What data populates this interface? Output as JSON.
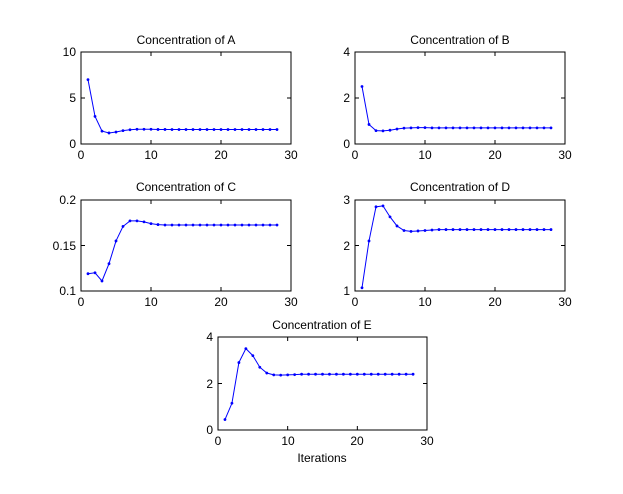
{
  "chart_data": [
    {
      "type": "line",
      "title": "Concentration of A",
      "xlabel": "",
      "ylabel": "",
      "xlim": [
        0,
        30
      ],
      "ylim": [
        0,
        10
      ],
      "xticks": [
        0,
        10,
        20,
        30
      ],
      "yticks": [
        0,
        5,
        10
      ],
      "xtick_labels": [
        "0",
        "10",
        "20",
        "30"
      ],
      "ytick_labels": [
        "0",
        "5",
        "10"
      ],
      "grid": false,
      "series": [
        {
          "color": "#0000ff",
          "marker": "dot",
          "x": [
            1,
            2,
            3,
            4,
            5,
            6,
            7,
            8,
            9,
            10,
            11,
            12,
            13,
            14,
            15,
            16,
            17,
            18,
            19,
            20,
            21,
            22,
            23,
            24,
            25,
            26,
            27,
            28
          ],
          "y": [
            7.0,
            3.0,
            1.4,
            1.2,
            1.3,
            1.45,
            1.55,
            1.6,
            1.6,
            1.6,
            1.58,
            1.58,
            1.57,
            1.57,
            1.57,
            1.57,
            1.57,
            1.57,
            1.57,
            1.57,
            1.57,
            1.57,
            1.57,
            1.57,
            1.57,
            1.57,
            1.57,
            1.57
          ]
        }
      ]
    },
    {
      "type": "line",
      "title": "Concentration of B",
      "xlabel": "",
      "ylabel": "",
      "xlim": [
        0,
        30
      ],
      "ylim": [
        0,
        4
      ],
      "xticks": [
        0,
        10,
        20,
        30
      ],
      "yticks": [
        0,
        2,
        4
      ],
      "xtick_labels": [
        "0",
        "10",
        "20",
        "30"
      ],
      "ytick_labels": [
        "0",
        "2",
        "4"
      ],
      "grid": false,
      "series": [
        {
          "color": "#0000ff",
          "marker": "dot",
          "x": [
            1,
            2,
            3,
            4,
            5,
            6,
            7,
            8,
            9,
            10,
            11,
            12,
            13,
            14,
            15,
            16,
            17,
            18,
            19,
            20,
            21,
            22,
            23,
            24,
            25,
            26,
            27,
            28
          ],
          "y": [
            2.5,
            0.85,
            0.58,
            0.57,
            0.6,
            0.65,
            0.69,
            0.7,
            0.71,
            0.71,
            0.7,
            0.7,
            0.7,
            0.7,
            0.7,
            0.7,
            0.7,
            0.7,
            0.7,
            0.7,
            0.7,
            0.7,
            0.7,
            0.7,
            0.7,
            0.7,
            0.7,
            0.7
          ]
        }
      ]
    },
    {
      "type": "line",
      "title": "Concentration of C",
      "xlabel": "",
      "ylabel": "",
      "xlim": [
        0,
        30
      ],
      "ylim": [
        0.1,
        0.2
      ],
      "xticks": [
        0,
        10,
        20,
        30
      ],
      "yticks": [
        0.1,
        0.15,
        0.2
      ],
      "xtick_labels": [
        "0",
        "10",
        "20",
        "30"
      ],
      "ytick_labels": [
        "0.1",
        "0.15",
        "0.2"
      ],
      "grid": false,
      "series": [
        {
          "color": "#0000ff",
          "marker": "dot",
          "x": [
            1,
            2,
            3,
            4,
            5,
            6,
            7,
            8,
            9,
            10,
            11,
            12,
            13,
            14,
            15,
            16,
            17,
            18,
            19,
            20,
            21,
            22,
            23,
            24,
            25,
            26,
            27,
            28
          ],
          "y": [
            0.119,
            0.12,
            0.111,
            0.13,
            0.155,
            0.171,
            0.177,
            0.177,
            0.176,
            0.174,
            0.173,
            0.1725,
            0.1725,
            0.1725,
            0.1725,
            0.1725,
            0.1725,
            0.1725,
            0.1725,
            0.1725,
            0.1725,
            0.1725,
            0.1725,
            0.1725,
            0.1725,
            0.1725,
            0.1725,
            0.1725
          ]
        }
      ]
    },
    {
      "type": "line",
      "title": "Concentration of D",
      "xlabel": "",
      "ylabel": "",
      "xlim": [
        0,
        30
      ],
      "ylim": [
        1,
        3
      ],
      "xticks": [
        0,
        10,
        20,
        30
      ],
      "yticks": [
        1,
        2,
        3
      ],
      "xtick_labels": [
        "0",
        "10",
        "20",
        "30"
      ],
      "ytick_labels": [
        "1",
        "2",
        "3"
      ],
      "grid": false,
      "series": [
        {
          "color": "#0000ff",
          "marker": "dot",
          "x": [
            1,
            2,
            3,
            4,
            5,
            6,
            7,
            8,
            9,
            10,
            11,
            12,
            13,
            14,
            15,
            16,
            17,
            18,
            19,
            20,
            21,
            22,
            23,
            24,
            25,
            26,
            27,
            28
          ],
          "y": [
            1.07,
            2.1,
            2.85,
            2.87,
            2.63,
            2.43,
            2.33,
            2.31,
            2.32,
            2.33,
            2.34,
            2.35,
            2.35,
            2.35,
            2.35,
            2.35,
            2.35,
            2.35,
            2.35,
            2.35,
            2.35,
            2.35,
            2.35,
            2.35,
            2.35,
            2.35,
            2.35,
            2.35
          ]
        }
      ]
    },
    {
      "type": "line",
      "title": "Concentration of E",
      "xlabel": "Iterations",
      "ylabel": "",
      "xlim": [
        0,
        30
      ],
      "ylim": [
        0,
        4
      ],
      "xticks": [
        0,
        10,
        20,
        30
      ],
      "yticks": [
        0,
        2,
        4
      ],
      "xtick_labels": [
        "0",
        "10",
        "20",
        "30"
      ],
      "ytick_labels": [
        "0",
        "2",
        "4"
      ],
      "grid": false,
      "series": [
        {
          "color": "#0000ff",
          "marker": "dot",
          "x": [
            1,
            2,
            3,
            4,
            5,
            6,
            7,
            8,
            9,
            10,
            11,
            12,
            13,
            14,
            15,
            16,
            17,
            18,
            19,
            20,
            21,
            22,
            23,
            24,
            25,
            26,
            27,
            28
          ],
          "y": [
            0.45,
            1.15,
            2.9,
            3.5,
            3.2,
            2.7,
            2.45,
            2.37,
            2.36,
            2.37,
            2.38,
            2.4,
            2.4,
            2.4,
            2.4,
            2.4,
            2.4,
            2.4,
            2.4,
            2.4,
            2.4,
            2.4,
            2.4,
            2.4,
            2.4,
            2.4,
            2.4,
            2.4
          ]
        }
      ]
    }
  ]
}
